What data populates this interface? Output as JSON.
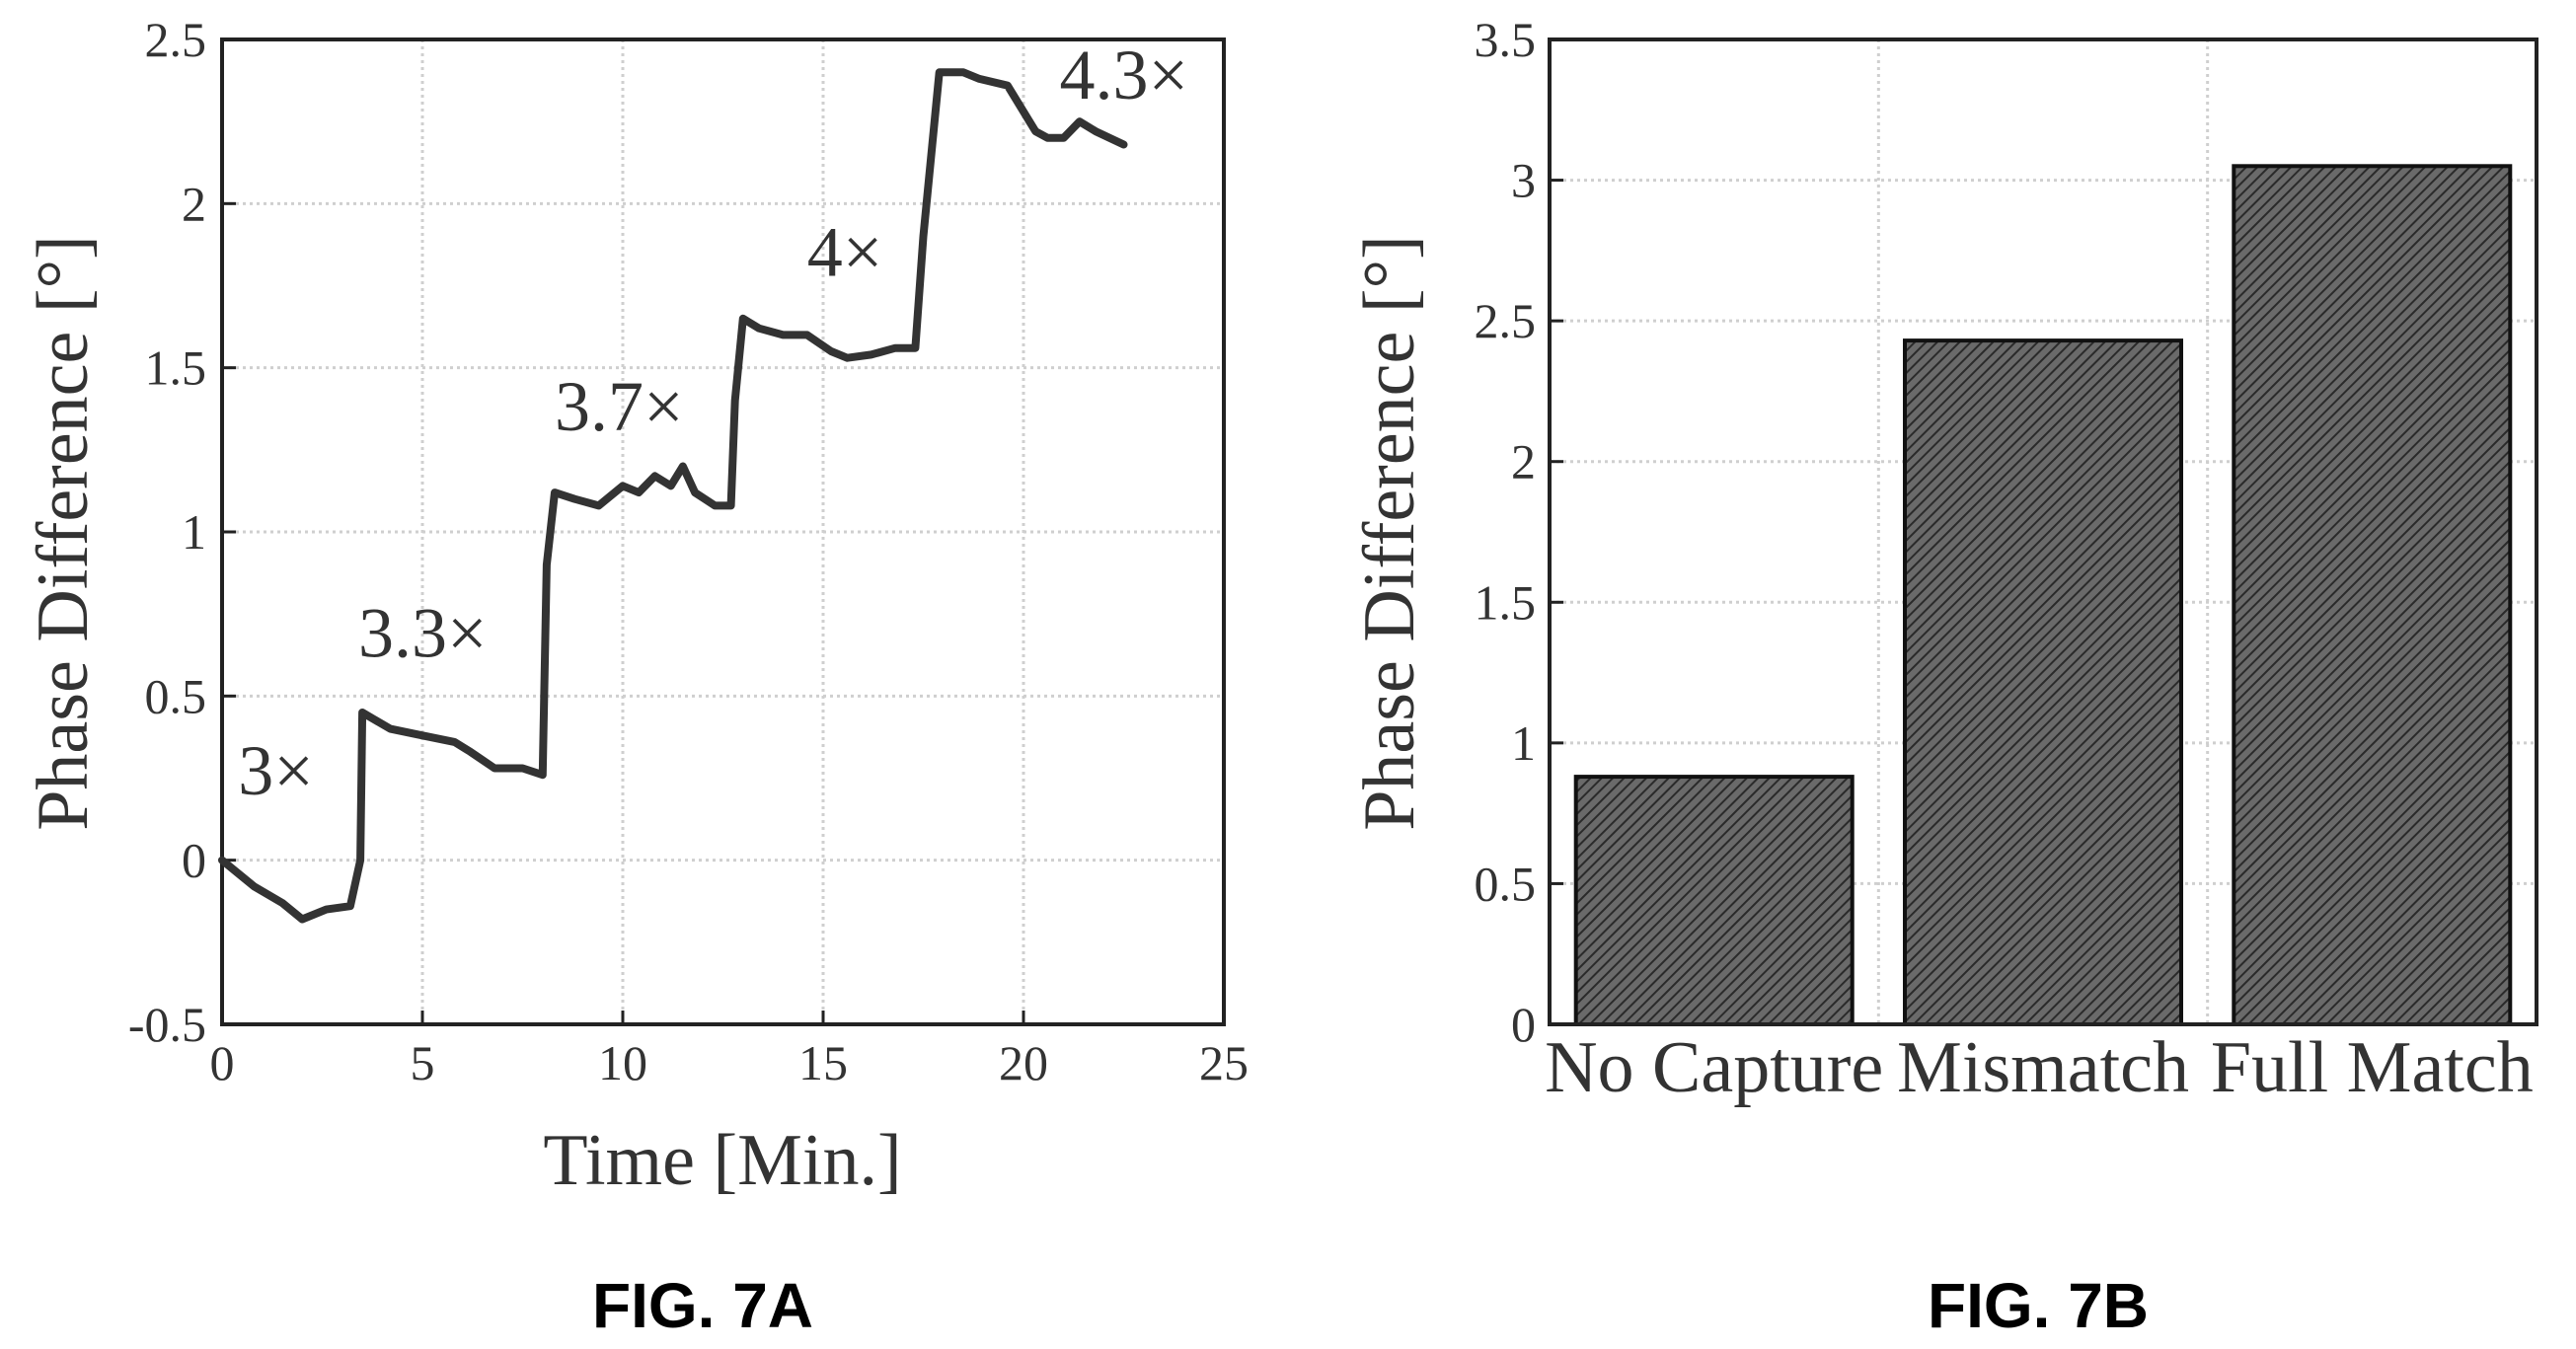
{
  "chart_data": [
    {
      "type": "line",
      "caption": "FIG. 7A",
      "xlabel": "Time [Min.]",
      "ylabel": "Phase Difference [°]",
      "xlim": [
        0,
        25
      ],
      "ylim": [
        -0.5,
        2.5
      ],
      "xticks": [
        0,
        5,
        10,
        15,
        20,
        25
      ],
      "xtick_labels": [
        "0",
        "5",
        "10",
        "15",
        "20",
        "25"
      ],
      "yticks": [
        -0.5,
        0,
        0.5,
        1,
        1.5,
        2,
        2.5
      ],
      "ytick_labels": [
        "-0.5",
        "0",
        "0.5",
        "1",
        "1.5",
        "2",
        "2.5"
      ],
      "grid": true,
      "series": [
        {
          "x": [
            0,
            0.8,
            1.5,
            2.0,
            2.6,
            3.2,
            3.45,
            3.5,
            4.2,
            5.0,
            5.8,
            6.2,
            6.8,
            7.5,
            8.0,
            8.1,
            8.3,
            8.8,
            9.4,
            10.0,
            10.4,
            10.8,
            11.2,
            11.5,
            11.8,
            12.3,
            12.7,
            12.8,
            13.0,
            13.4,
            14.0,
            14.6,
            15.2,
            15.6,
            16.2,
            16.8,
            17.3,
            17.5,
            17.9,
            18.5,
            18.9,
            19.6,
            20.3,
            20.6,
            21.0,
            21.4,
            21.8,
            22.5
          ],
          "y": [
            0,
            -0.08,
            -0.13,
            -0.18,
            -0.15,
            -0.14,
            0.0,
            0.45,
            0.4,
            0.38,
            0.36,
            0.33,
            0.28,
            0.28,
            0.26,
            0.9,
            1.12,
            1.1,
            1.08,
            1.14,
            1.12,
            1.17,
            1.14,
            1.2,
            1.12,
            1.08,
            1.08,
            1.4,
            1.65,
            1.62,
            1.6,
            1.6,
            1.55,
            1.53,
            1.54,
            1.56,
            1.56,
            1.9,
            2.4,
            2.4,
            2.38,
            2.36,
            2.22,
            2.2,
            2.2,
            2.25,
            2.22,
            2.18
          ]
        }
      ],
      "annotations": [
        {
          "text": "3×",
          "x": 0.4,
          "y": 0.2
        },
        {
          "text": "3.3×",
          "x": 3.4,
          "y": 0.62
        },
        {
          "text": "3.7×",
          "x": 8.3,
          "y": 1.31
        },
        {
          "text": "4×",
          "x": 14.6,
          "y": 1.78
        },
        {
          "text": "4.3×",
          "x": 20.9,
          "y": 2.32
        }
      ]
    },
    {
      "type": "bar",
      "caption": "FIG. 7B",
      "xlabel": "",
      "ylabel": "Phase Difference [°]",
      "categories": [
        "No Capture",
        "Mismatch",
        "Full Match"
      ],
      "values": [
        0.88,
        2.43,
        3.05
      ],
      "ylim": [
        0,
        3.5
      ],
      "yticks": [
        0,
        0.5,
        1,
        1.5,
        2,
        2.5,
        3,
        3.5
      ],
      "ytick_labels": [
        "0",
        "0.5",
        "1",
        "1.5",
        "2",
        "2.5",
        "3",
        "3.5"
      ],
      "grid": true
    }
  ],
  "colors": {
    "line": "#333333",
    "bar_fill": "#555555",
    "axis": "#222222",
    "grid": "#cfcfcf"
  }
}
